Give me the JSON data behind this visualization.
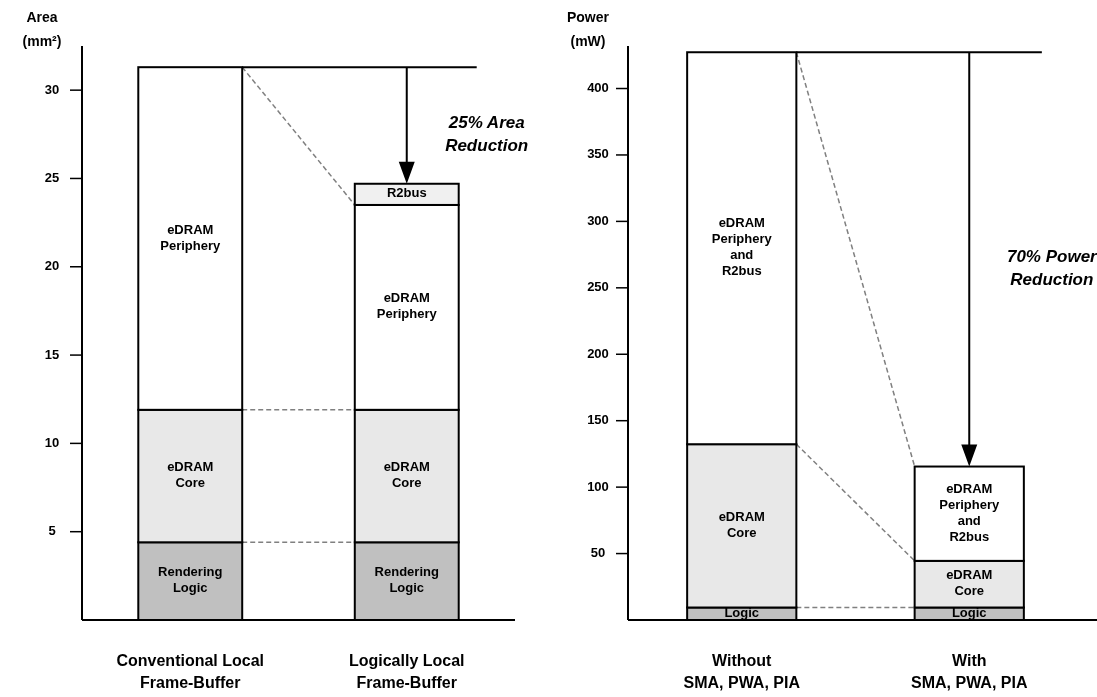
{
  "chart_data": [
    {
      "type": "bar",
      "stacked": true,
      "ylabel": "Area\n(mm²)",
      "categories": [
        "Conventional Local\nFrame-Buffer",
        "Logically Local\nFrame-Buffer"
      ],
      "ylim": [
        0,
        32.5
      ],
      "yticks": [
        5,
        10,
        15,
        20,
        25,
        30
      ],
      "annotations": [
        "25% Area\nReduction"
      ],
      "ref_lines": [
        {
          "axis": "y",
          "value": 31.3
        }
      ],
      "series": [
        {
          "name": "Rendering Logic",
          "color": "#c0c0c0",
          "values": [
            4.4,
            4.4
          ]
        },
        {
          "name": "eDRAM Core",
          "color": "#e8e8e8",
          "values": [
            7.5,
            7.5
          ]
        },
        {
          "name": "eDRAM Periphery",
          "color": "#ffffff",
          "values": [
            19.4,
            11.6
          ]
        },
        {
          "name": "R2bus",
          "color": "#f0f0f0",
          "values": [
            null,
            1.2
          ]
        }
      ]
    },
    {
      "type": "bar",
      "stacked": true,
      "ylabel": "Power\n(mW)",
      "categories": [
        "Without\nSMA, PWA, PIA",
        "With\nSMA, PWA, PIA"
      ],
      "ylim": [
        0,
        432
      ],
      "yticks": [
        50,
        100,
        150,
        200,
        250,
        300,
        350,
        400
      ],
      "annotations": [
        "70% Power\nReduction"
      ],
      "ref_lines": [
        {
          "axis": "y",
          "value": 427.3
        }
      ],
      "series": [
        {
          "name": "Logic",
          "color": "#c0c0c0",
          "values": [
            9.4,
            9.4
          ]
        },
        {
          "name": "eDRAM Core",
          "color": "#e8e8e8",
          "values": [
            122.9,
            35.1
          ]
        },
        {
          "name": "eDRAM Periphery and R2bus",
          "color": "#ffffff",
          "values": [
            295,
            71
          ]
        }
      ]
    }
  ]
}
